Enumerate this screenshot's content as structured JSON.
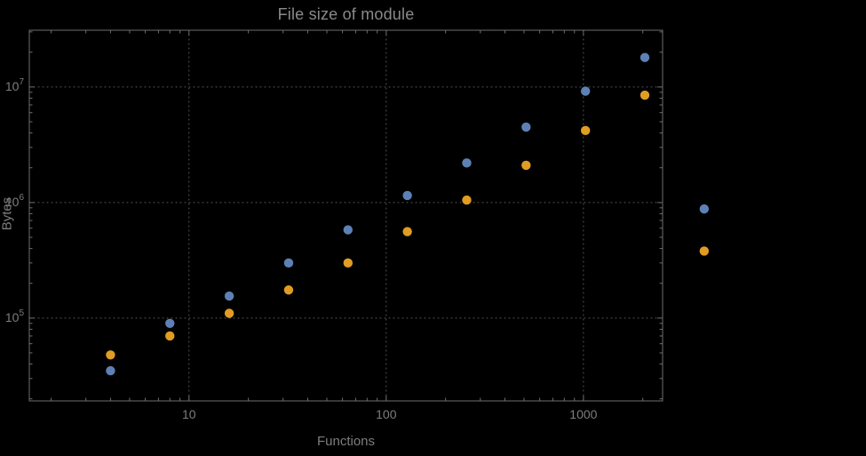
{
  "chart_data": {
    "type": "scatter",
    "title": "File size of module",
    "xlabel": "Functions",
    "ylabel": "Bytes",
    "x_scale": "log",
    "y_scale": "log",
    "grid": true,
    "legend": "none",
    "xlim": [
      1.55,
      2520
    ],
    "ylim": [
      19200,
      31000000
    ],
    "x_ticks": [
      10,
      100,
      1000
    ],
    "x_tick_labels": [
      "10",
      "100",
      "1000"
    ],
    "y_ticks": [
      100000,
      1000000,
      10000000
    ],
    "y_tick_labels": [
      {
        "base": "10",
        "exp": "5"
      },
      {
        "base": "10",
        "exp": "6"
      },
      {
        "base": "10",
        "exp": "7"
      }
    ],
    "colors": {
      "series_blue": "#5e81b5",
      "series_orange": "#e19c24",
      "frame": "#6e6e6e",
      "gridline": "#5a5a5a",
      "background": "#000000"
    },
    "series": [
      {
        "name": "series-blue",
        "color": "#5e81b5",
        "points": [
          [
            4,
            35000
          ],
          [
            8,
            90000
          ],
          [
            16,
            155000
          ],
          [
            32,
            300000
          ],
          [
            64,
            580000
          ],
          [
            128,
            1150000
          ],
          [
            256,
            2200000
          ],
          [
            512,
            4500000
          ],
          [
            1024,
            9200000
          ],
          [
            2048,
            18000000
          ],
          [
            4096,
            880000
          ]
        ]
      },
      {
        "name": "series-orange",
        "color": "#e19c24",
        "points": [
          [
            4,
            48000
          ],
          [
            8,
            70000
          ],
          [
            16,
            110000
          ],
          [
            32,
            175000
          ],
          [
            64,
            300000
          ],
          [
            128,
            560000
          ],
          [
            256,
            1050000
          ],
          [
            512,
            2100000
          ],
          [
            1024,
            4200000
          ],
          [
            2048,
            8500000
          ],
          [
            4096,
            380000
          ]
        ]
      }
    ]
  }
}
